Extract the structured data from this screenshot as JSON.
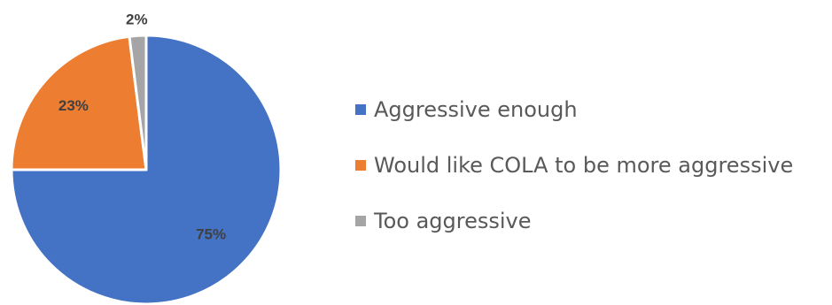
{
  "chart_data": {
    "type": "pie",
    "title": "",
    "categories": [
      "Aggressive enough",
      "Would like COLA to be more aggressive",
      "Too aggressive"
    ],
    "values": [
      75,
      23,
      2
    ],
    "data_labels": [
      "75%",
      "23%",
      "2%"
    ],
    "colors": [
      "#4472C4",
      "#ED7D31",
      "#A5A5A5"
    ],
    "start_angle_degrees": 0,
    "direction": "clockwise",
    "legend_position": "right"
  }
}
